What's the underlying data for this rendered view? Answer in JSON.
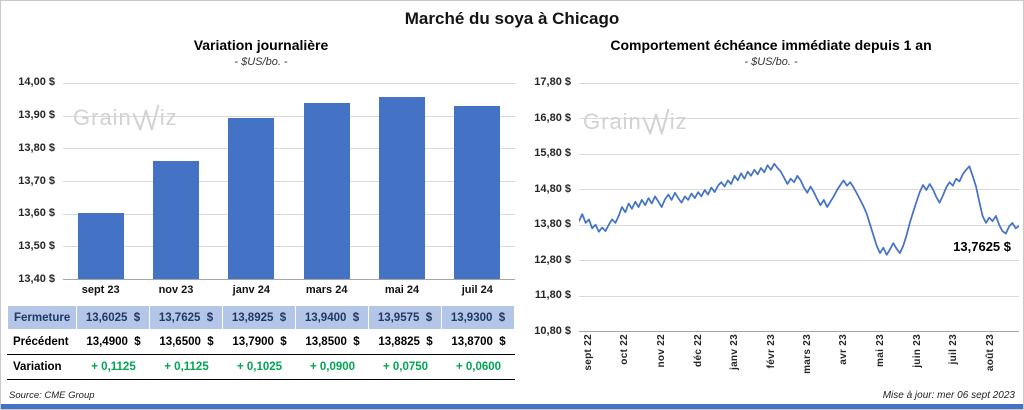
{
  "page": {
    "title": "Marché du soya à Chicago",
    "source": "Source: CME Group",
    "updated": "Mise à jour: mer 06 sept 2023"
  },
  "brand": {
    "name": "GrainWiz",
    "prefix": "Grain",
    "suffix": "iz"
  },
  "colors": {
    "accent_blue": "#4472C4",
    "table_row_bg": "#B4C6E7",
    "table_row_text": "#1F3864",
    "positive_green": "#00A651",
    "watermark_gray": "#D2D2D2"
  },
  "chart_data": [
    {
      "type": "bar",
      "title": "Variation  journalière",
      "subtitle": "- $US/bo. -",
      "categories": [
        "sept 23",
        "nov 23",
        "janv 24",
        "mars 24",
        "mai 24",
        "juil 24"
      ],
      "values": [
        13.6025,
        13.7625,
        13.8925,
        13.94,
        13.9575,
        13.93
      ],
      "ylim": [
        13.4,
        14.0
      ],
      "ytick_step": 0.1,
      "ytick_labels": [
        "14,00 $",
        "13,90 $",
        "13,80 $",
        "13,70 $",
        "13,60 $",
        "13,50 $",
        "13,40 $"
      ],
      "grid": true,
      "legend": "none"
    },
    {
      "type": "line",
      "title": "Comportement  échéance  immédiate  depuis 1 an",
      "subtitle": "- $US/bo. -",
      "x_tick_labels": [
        "sept 22",
        "oct 22",
        "nov 22",
        "déc 22",
        "janv 23",
        "févr 23",
        "mars 23",
        "avr 23",
        "mai 23",
        "juin 23",
        "juil 23",
        "août 23"
      ],
      "ylim": [
        10.8,
        17.8
      ],
      "ytick_step": 1.0,
      "ytick_labels": [
        "17,80 $",
        "16,80 $",
        "15,80 $",
        "14,80 $",
        "13,80 $",
        "12,80 $",
        "11,80 $",
        "10,80 $"
      ],
      "annotation": "13,7625 $",
      "last_value": 13.7625,
      "grid": true,
      "legend": "none",
      "values": [
        13.9,
        14.1,
        13.85,
        13.95,
        13.7,
        13.8,
        13.6,
        13.72,
        13.62,
        13.8,
        13.95,
        13.85,
        14.05,
        14.3,
        14.15,
        14.4,
        14.25,
        14.45,
        14.3,
        14.5,
        14.35,
        14.55,
        14.4,
        14.6,
        14.45,
        14.3,
        14.52,
        14.65,
        14.5,
        14.7,
        14.55,
        14.42,
        14.6,
        14.5,
        14.68,
        14.55,
        14.72,
        14.6,
        14.78,
        14.65,
        14.85,
        14.72,
        14.9,
        15.0,
        14.88,
        15.05,
        14.95,
        15.18,
        15.05,
        15.25,
        15.1,
        15.3,
        15.18,
        15.35,
        15.22,
        15.4,
        15.28,
        15.48,
        15.35,
        15.52,
        15.4,
        15.3,
        15.12,
        14.95,
        15.1,
        15.0,
        15.18,
        15.05,
        14.85,
        14.7,
        14.88,
        14.72,
        14.52,
        14.35,
        14.5,
        14.3,
        14.45,
        14.6,
        14.78,
        14.92,
        15.05,
        14.9,
        15.0,
        14.85,
        14.68,
        14.5,
        14.32,
        14.1,
        13.8,
        13.5,
        13.2,
        13.0,
        13.15,
        12.95,
        13.1,
        13.28,
        13.12,
        13.0,
        13.2,
        13.5,
        13.85,
        14.15,
        14.45,
        14.72,
        14.92,
        14.78,
        14.95,
        14.8,
        14.58,
        14.42,
        14.62,
        14.85,
        15.0,
        14.9,
        15.1,
        15.02,
        15.22,
        15.35,
        15.45,
        15.18,
        14.88,
        14.45,
        14.05,
        13.85,
        14.0,
        13.9,
        14.05,
        13.8,
        13.62,
        13.55,
        13.75,
        13.85,
        13.7,
        13.7625
      ]
    },
    {
      "type": "table",
      "rows": [
        {
          "label": "Fermeture",
          "values": [
            "13,6025  $",
            "13,7625  $",
            "13,8925  $",
            "13,9400  $",
            "13,9575  $",
            "13,9300  $"
          ]
        },
        {
          "label": "Précédent",
          "values": [
            "13,4900  $",
            "13,6500  $",
            "13,7900  $",
            "13,8500  $",
            "13,8825  $",
            "13,8700  $"
          ]
        },
        {
          "label": "Variation",
          "values": [
            "+ 0,1125",
            "+ 0,1125",
            "+ 0,1025",
            "+ 0,0900",
            "+ 0,0750",
            "+ 0,0600"
          ]
        }
      ]
    }
  ]
}
